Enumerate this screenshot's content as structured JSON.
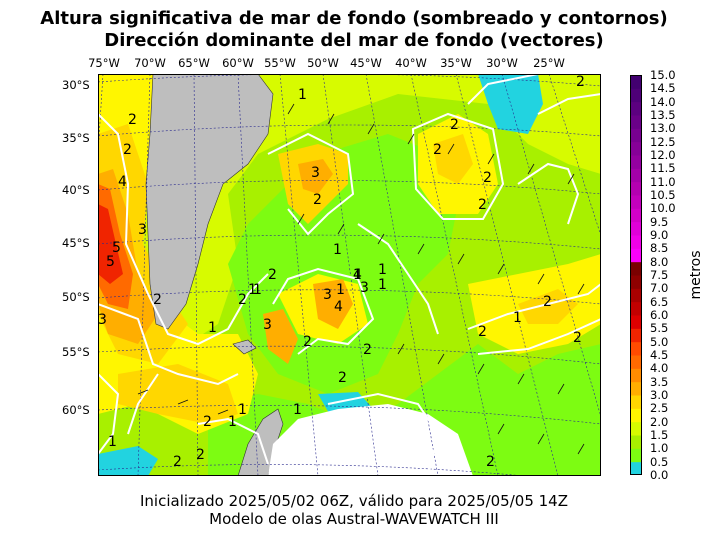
{
  "title": {
    "line1": "Altura significativa de mar de fondo (sombreado y contornos)",
    "line2": "Dirección dominante del mar de fondo (vectores)"
  },
  "footer": {
    "line1": "Inicializado 2025/05/02 06Z, válido para 2025/05/05 14Z",
    "line2": "Modelo de olas Austral-WAVEWATCH III"
  },
  "lon_labels": [
    "75°W",
    "70°W",
    "65°W",
    "60°W",
    "55°W",
    "50°W",
    "45°W",
    "40°W",
    "35°W",
    "30°W",
    "25°W"
  ],
  "lat_labels": [
    "30°S",
    "35°S",
    "40°S",
    "45°S",
    "50°S",
    "55°S",
    "60°S"
  ],
  "colorbar": {
    "label": "metros",
    "ticks": [
      "15.0",
      "14.5",
      "14.0",
      "13.5",
      "13.0",
      "12.5",
      "12.0",
      "11.5",
      "11.0",
      "10.5",
      "10.0",
      "9.5",
      "9.0",
      "8.5",
      "8.0",
      "7.5",
      "7.0",
      "6.5",
      "6.0",
      "5.5",
      "5.0",
      "4.5",
      "4.0",
      "3.5",
      "3.0",
      "2.5",
      "2.0",
      "1.5",
      "1.0",
      "0.5",
      "0.0"
    ],
    "colors": [
      "#22d3e0",
      "#7dfc12",
      "#a8f000",
      "#d7fb00",
      "#fff600",
      "#ffd700",
      "#ffae00",
      "#ff8c00",
      "#ff6a00",
      "#ff4b00",
      "#f02400",
      "#dd0000",
      "#c20000",
      "#a80000",
      "#8f0000",
      "#7a0000",
      "#fb00fb",
      "#f000e8",
      "#e000d8",
      "#d200c8",
      "#c300bc",
      "#b400b0",
      "#a400a8",
      "#9400a0",
      "#860098",
      "#780090",
      "#6a0088",
      "#5c0080",
      "#4e0078",
      "#420070"
    ]
  },
  "contour_labels": [
    "1",
    "1",
    "1",
    "1",
    "1",
    "1",
    "1",
    "1",
    "1",
    "1",
    "1",
    "1",
    "1",
    "1",
    "2",
    "2",
    "2",
    "2",
    "2",
    "2",
    "2",
    "2",
    "2",
    "2",
    "2",
    "2",
    "2",
    "2",
    "2",
    "2",
    "2",
    "2",
    "2",
    "2",
    "2",
    "3",
    "3",
    "3",
    "3",
    "3",
    "3",
    "4",
    "4",
    "4",
    "5",
    "5"
  ]
}
